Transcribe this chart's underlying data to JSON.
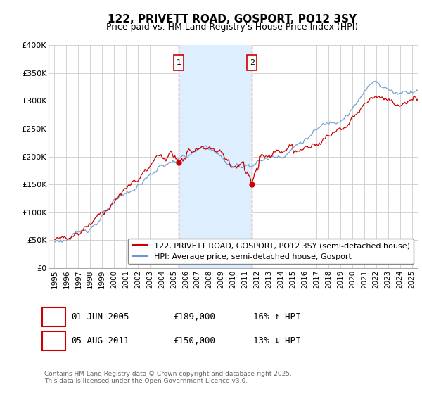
{
  "title": "122, PRIVETT ROAD, GOSPORT, PO12 3SY",
  "subtitle": "Price paid vs. HM Land Registry's House Price Index (HPI)",
  "legend_label_red": "122, PRIVETT ROAD, GOSPORT, PO12 3SY (semi-detached house)",
  "legend_label_blue": "HPI: Average price, semi-detached house, Gosport",
  "footer": "Contains HM Land Registry data © Crown copyright and database right 2025.\nThis data is licensed under the Open Government Licence v3.0.",
  "sale1_date": "01-JUN-2005",
  "sale1_price": 189000,
  "sale1_hpi_pct": "16% ↑ HPI",
  "sale2_date": "05-AUG-2011",
  "sale2_price": 150000,
  "sale2_hpi_pct": "13% ↓ HPI",
  "sale1_year": 2005.42,
  "sale2_year": 2011.58,
  "ylim": [
    0,
    400000
  ],
  "xlim": [
    1994.5,
    2025.5
  ],
  "yticks": [
    0,
    50000,
    100000,
    150000,
    200000,
    250000,
    300000,
    350000,
    400000
  ],
  "ytick_labels": [
    "£0",
    "£50K",
    "£100K",
    "£150K",
    "£200K",
    "£250K",
    "£300K",
    "£350K",
    "£400K"
  ],
  "xticks": [
    1995,
    1996,
    1997,
    1998,
    1999,
    2000,
    2001,
    2002,
    2003,
    2004,
    2005,
    2006,
    2007,
    2008,
    2009,
    2010,
    2011,
    2012,
    2013,
    2014,
    2015,
    2016,
    2017,
    2018,
    2019,
    2020,
    2021,
    2022,
    2023,
    2024,
    2025
  ],
  "red_color": "#cc0000",
  "blue_color": "#6699cc",
  "shade_color": "#ddeeff",
  "vline_color": "#cc0000",
  "background_color": "#ffffff",
  "grid_color": "#cccccc",
  "title_fontsize": 11,
  "subtitle_fontsize": 9,
  "tick_fontsize": 8,
  "legend_fontsize": 8
}
